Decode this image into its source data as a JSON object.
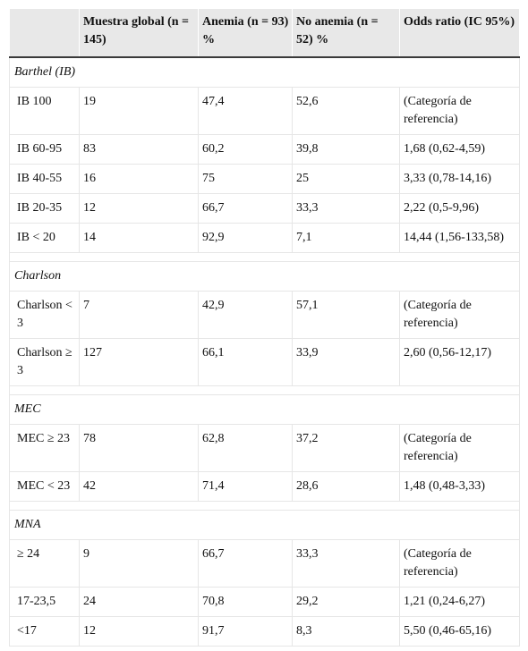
{
  "headers": [
    "",
    "Muestra global (n = 145)",
    "Anemia (n = 93) %",
    "No anemia (n = 52) %",
    "Odds ratio (IC 95%)"
  ],
  "sections": [
    {
      "title": "Barthel (IB)",
      "rows": [
        [
          "IB 100",
          "19",
          "47,4",
          "52,6",
          "(Categoría de referencia)"
        ],
        [
          "IB 60-95",
          "83",
          "60,2",
          "39,8",
          "1,68 (0,62-4,59)"
        ],
        [
          "IB 40-55",
          "16",
          "75",
          "25",
          "3,33 (0,78-14,16)"
        ],
        [
          "IB 20-35",
          "12",
          "66,7",
          "33,3",
          "2,22 (0,5-9,96)"
        ],
        [
          "IB < 20",
          "14",
          "92,9",
          "7,1",
          "14,44 (1,56-133,58)"
        ]
      ]
    },
    {
      "title": "Charlson",
      "rows": [
        [
          "Charlson < 3",
          "7",
          "42,9",
          "57,1",
          "(Categoría de referencia)"
        ],
        [
          "Charlson ≥ 3",
          "127",
          "66,1",
          "33,9",
          "2,60 (0,56-12,17)"
        ]
      ]
    },
    {
      "title": "MEC",
      "rows": [
        [
          "MEC ≥ 23",
          "78",
          "62,8",
          "37,2",
          "(Categoría de referencia)"
        ],
        [
          "MEC < 23",
          "42",
          "71,4",
          "28,6",
          "1,48 (0,48-3,33)"
        ]
      ]
    },
    {
      "title": "MNA",
      "rows": [
        [
          "≥ 24",
          "9",
          "66,7",
          "33,3",
          "(Categoría de referencia)"
        ],
        [
          "17-23,5",
          "24",
          "70,8",
          "29,2",
          "1,21 (0,24-6,27)"
        ],
        [
          "<17",
          "12",
          "91,7",
          "8,3",
          "5,50 (0,46-65,16)"
        ]
      ]
    }
  ]
}
